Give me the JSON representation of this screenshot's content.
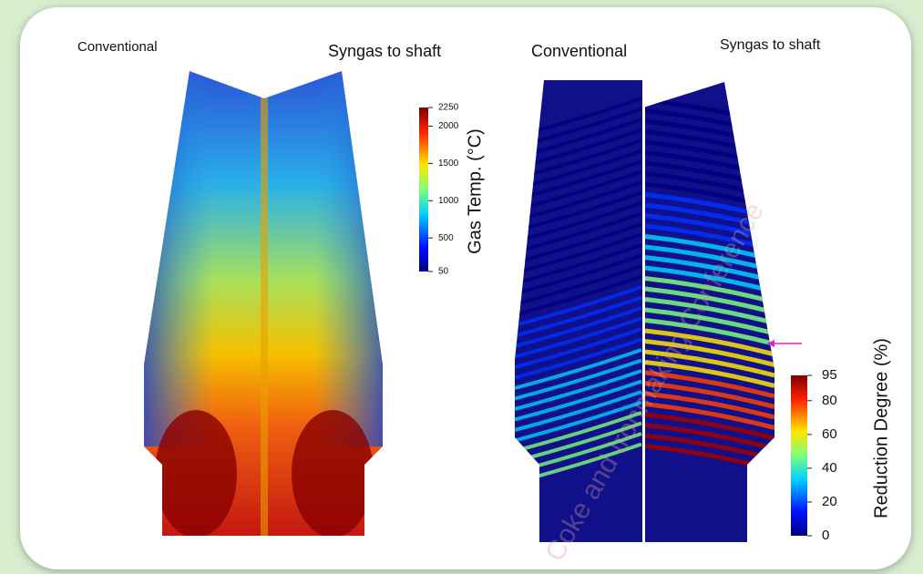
{
  "panels": [
    {
      "labels": [
        "Conventional",
        "Syngas to shaft"
      ],
      "colorbar": {
        "title": "Gas Temp. (°C)",
        "ticks": [
          2250,
          2000,
          1500,
          1000,
          500,
          50
        ]
      }
    },
    {
      "labels": [
        "Conventional",
        "Syngas to shaft"
      ],
      "colorbar": {
        "title": "Reduction Degree (%)",
        "ticks": [
          95,
          80,
          60,
          40,
          20,
          0
        ]
      }
    }
  ],
  "watermark": "Coke and Ironmaking Conference"
}
